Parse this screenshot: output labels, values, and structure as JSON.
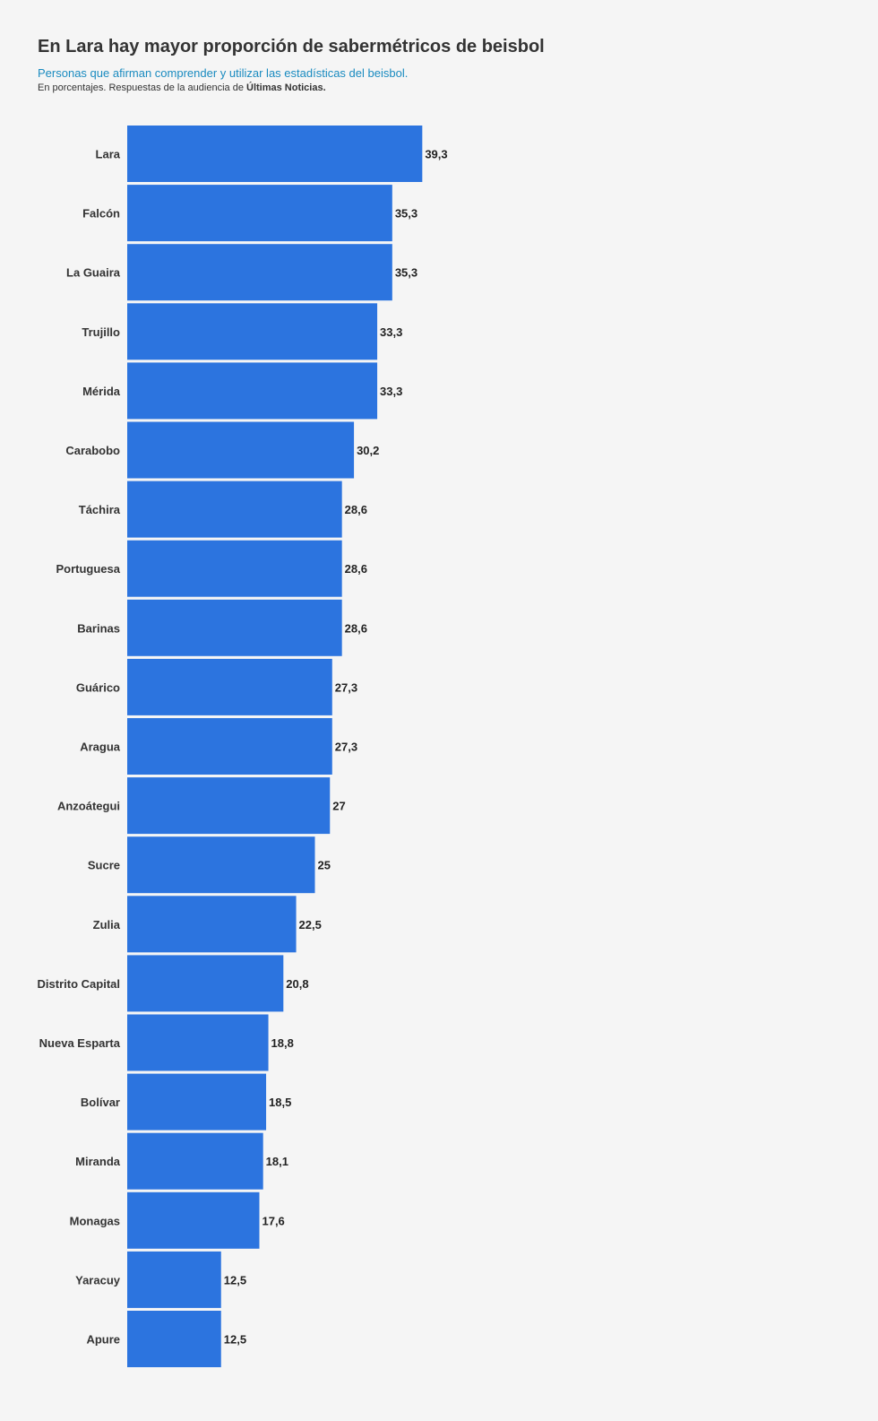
{
  "header": {
    "title": "En Lara hay mayor proporción de sabermétricos de beisbol",
    "subtitle": "Personas que afirman comprender y utilizar las estadísticas del beisbol.",
    "note_prefix": "En porcentajes. Respuestas de la audiencia de ",
    "note_source": "Últimas Noticias."
  },
  "chart_data": {
    "type": "bar",
    "orientation": "horizontal",
    "title": "En Lara hay mayor proporción de sabermétricos de beisbol",
    "subtitle": "Personas que afirman comprender y utilizar las estadísticas del beisbol.",
    "categories": [
      "Lara",
      "Falcón",
      "La Guaira",
      "Trujillo",
      "Mérida",
      "Carabobo",
      "Táchira",
      "Portuguesa",
      "Barinas",
      "Guárico",
      "Aragua",
      "Anzoátegui",
      "Sucre",
      "Zulia",
      "Distrito Capital",
      "Nueva Esparta",
      "Bolívar",
      "Miranda",
      "Monagas",
      "Yaracuy",
      "Apure"
    ],
    "values": [
      39.3,
      35.3,
      35.3,
      33.3,
      33.3,
      30.2,
      28.6,
      28.6,
      28.6,
      27.3,
      27.3,
      27,
      25,
      22.5,
      20.8,
      18.8,
      18.5,
      18.1,
      17.6,
      12.5,
      12.5
    ],
    "value_labels": [
      "39,3",
      "35,3",
      "35,3",
      "33,3",
      "33,3",
      "30,2",
      "28,6",
      "28,6",
      "28,6",
      "27,3",
      "27,3",
      "27",
      "25",
      "22,5",
      "20,8",
      "18,8",
      "18,5",
      "18,1",
      "17,6",
      "12,5",
      "12,5"
    ],
    "xlim": [
      0,
      100
    ],
    "bar_color": "#2c74df",
    "grid": false,
    "legend": "none"
  }
}
